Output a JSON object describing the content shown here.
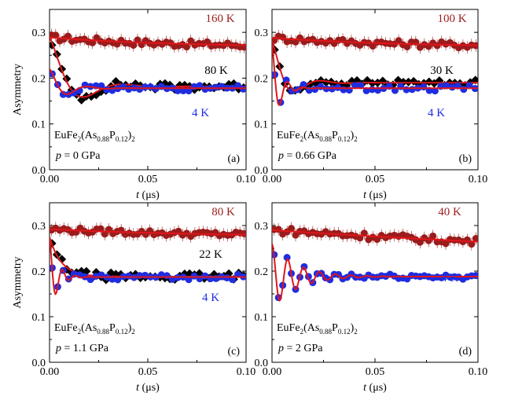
{
  "figure": {
    "y_label": "Asymmetry"
  },
  "colors": {
    "high_t": "#9b1c1c",
    "mid_t": "#000000",
    "low_t": "#1f2de0",
    "fit": "#e0161b",
    "axis": "#000000"
  },
  "chart_data": [
    {
      "type": "scatter",
      "panel_label": "(a)",
      "sample_main": "EuFe",
      "sample_sub1": "2",
      "sample_mid": "(As",
      "sample_sub2": "0.88",
      "sample_p": "P",
      "sample_sub3": "0.12",
      "sample_end": ")",
      "sample_sub4": "2",
      "pressure_var": "p",
      "pressure_value": " = 0 GPa",
      "xlabel_var": "t",
      "xlabel_unit": " (μs)",
      "ylabel": "Asymmetry",
      "xlim": [
        0,
        0.1
      ],
      "ylim": [
        0,
        0.35
      ],
      "x_ticks": [
        0,
        0.05,
        0.1
      ],
      "x_tick_labels": [
        "0.00",
        "0.05",
        "0.10"
      ],
      "y_ticks": [
        0,
        0.1,
        0.2,
        0.3
      ],
      "y_tick_labels": [
        "0.0",
        "0.1",
        "0.2",
        "0.3"
      ],
      "series": [
        {
          "name": "160 K",
          "color": "#9b1c1c",
          "marker": "circle",
          "model": "relax",
          "params": {
            "a0": 0.289,
            "base": 0.268,
            "tau": 0.06
          },
          "noise": 0.007,
          "n": 48
        },
        {
          "name": "80 K",
          "color": "#000000",
          "marker": "diamond",
          "model": "damped",
          "params": {
            "a0": 0.29,
            "base": 0.182,
            "amp": 0.105,
            "tau": 0.012,
            "freq": 25,
            "floor_slope": 0
          },
          "noise": 0.008,
          "n": 40
        },
        {
          "name": "4 K",
          "color": "#1f2de0",
          "marker": "circle",
          "model": "damped",
          "params": {
            "a0": 0.22,
            "base": 0.178,
            "amp": 0.045,
            "tau": 0.008,
            "freq": 50,
            "floor_slope": 0
          },
          "noise": 0.006,
          "n": 36
        }
      ],
      "label_positions_hint": "top-right"
    },
    {
      "type": "scatter",
      "panel_label": "(b)",
      "sample_main": "EuFe",
      "sample_sub1": "2",
      "sample_mid": "(As",
      "sample_sub2": "0.88",
      "sample_p": "P",
      "sample_sub3": "0.12",
      "sample_end": ")",
      "sample_sub4": "2",
      "pressure_var": "p",
      "pressure_value": " = 0.66 GPa",
      "xlabel_var": "t",
      "xlabel_unit": " (μs)",
      "ylabel": "Asymmetry",
      "xlim": [
        0,
        0.1
      ],
      "ylim": [
        0,
        0.35
      ],
      "x_ticks": [
        0,
        0.05,
        0.1
      ],
      "x_tick_labels": [
        "0.00",
        "0.05",
        "0.10"
      ],
      "y_ticks": [
        0,
        0.1,
        0.2,
        0.3
      ],
      "y_tick_labels": [
        "0.0",
        "0.1",
        "0.2",
        "0.3"
      ],
      "series": [
        {
          "name": "100 K",
          "color": "#9b1c1c",
          "marker": "circle",
          "model": "relax",
          "params": {
            "a0": 0.288,
            "base": 0.268,
            "tau": 0.06
          },
          "noise": 0.007,
          "n": 48
        },
        {
          "name": "30 K",
          "color": "#000000",
          "marker": "diamond",
          "model": "damped",
          "params": {
            "a0": 0.28,
            "base": 0.19,
            "amp": 0.09,
            "tau": 0.008,
            "freq": 40,
            "floor_slope": 0
          },
          "noise": 0.006,
          "n": 40
        },
        {
          "name": "4 K",
          "color": "#1f2de0",
          "marker": "circle",
          "model": "damped",
          "params": {
            "a0": 0.27,
            "base": 0.178,
            "amp": 0.09,
            "tau": 0.004,
            "freq": 130,
            "floor_slope": 0
          },
          "noise": 0.006,
          "n": 36
        }
      ]
    },
    {
      "type": "scatter",
      "panel_label": "(c)",
      "sample_main": "EuFe",
      "sample_sub1": "2",
      "sample_mid": "(As",
      "sample_sub2": "0.88",
      "sample_p": "P",
      "sample_sub3": "0.12",
      "sample_end": ")",
      "sample_sub4": "2",
      "pressure_var": "p",
      "pressure_value": " = 1.1 GPa",
      "xlabel_var": "t",
      "xlabel_unit": " (μs)",
      "ylabel": "Asymmetry",
      "xlim": [
        0,
        0.1
      ],
      "ylim": [
        0,
        0.35
      ],
      "x_ticks": [
        0,
        0.05,
        0.1
      ],
      "x_tick_labels": [
        "0.00",
        "0.05",
        "0.10"
      ],
      "y_ticks": [
        0,
        0.1,
        0.2,
        0.3
      ],
      "y_tick_labels": [
        "0.0",
        "0.1",
        "0.2",
        "0.3"
      ],
      "series": [
        {
          "name": "80 K",
          "color": "#9b1c1c",
          "marker": "circle",
          "model": "relax",
          "params": {
            "a0": 0.292,
            "base": 0.275,
            "tau": 0.08
          },
          "noise": 0.006,
          "n": 48
        },
        {
          "name": "22 K",
          "color": "#000000",
          "marker": "diamond",
          "model": "damped",
          "params": {
            "a0": 0.275,
            "base": 0.188,
            "amp": 0.087,
            "tau": 0.006,
            "freq": 0,
            "floor_slope": 0
          },
          "noise": 0.008,
          "n": 40
        },
        {
          "name": "4 K",
          "color": "#1f2de0",
          "marker": "circle",
          "model": "damped",
          "params": {
            "a0": 0.27,
            "base": 0.187,
            "amp": 0.09,
            "tau": 0.004,
            "freq": 150,
            "floor_slope": 0
          },
          "noise": 0.006,
          "n": 36
        }
      ]
    },
    {
      "type": "scatter",
      "panel_label": "(d)",
      "sample_main": "EuFe",
      "sample_sub1": "2",
      "sample_mid": "(As",
      "sample_sub2": "0.88",
      "sample_p": "P",
      "sample_sub3": "0.12",
      "sample_end": ")",
      "sample_sub4": "2",
      "pressure_var": "p",
      "pressure_value": " = 2 GPa",
      "xlabel_var": "t",
      "xlabel_unit": " (μs)",
      "ylabel": "Asymmetry",
      "xlim": [
        0,
        0.1
      ],
      "ylim": [
        0,
        0.35
      ],
      "x_ticks": [
        0,
        0.05,
        0.1
      ],
      "x_tick_labels": [
        "0.00",
        "0.05",
        "0.10"
      ],
      "y_ticks": [
        0,
        0.1,
        0.2,
        0.3
      ],
      "y_tick_labels": [
        "0.0",
        "0.1",
        "0.2",
        "0.3"
      ],
      "series": [
        {
          "name": "40 K",
          "color": "#9b1c1c",
          "marker": "circle",
          "model": "relax",
          "params": {
            "a0": 0.29,
            "base": 0.2,
            "tau": 0.3
          },
          "noise": 0.008,
          "n": 48
        },
        {
          "name": "4 K",
          "color": "#1f2de0",
          "marker": "circle",
          "model": "damped",
          "params": {
            "a0": 0.26,
            "base": 0.188,
            "amp": 0.075,
            "tau": 0.012,
            "freq": 130,
            "floor_slope": 0
          },
          "noise": 0.006,
          "n": 48
        }
      ]
    }
  ]
}
